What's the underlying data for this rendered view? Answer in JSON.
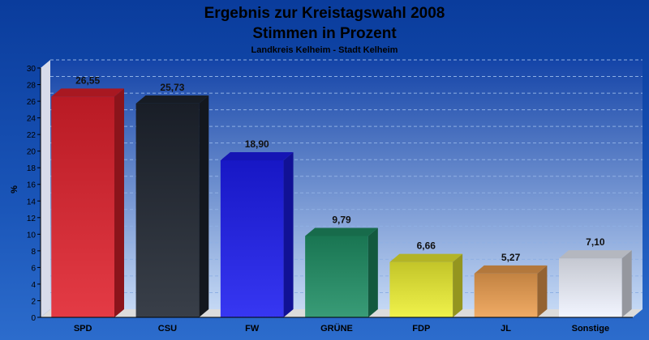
{
  "chart_data": {
    "type": "bar",
    "title": "Ergebnis zur Kreistagswahl 2008",
    "subtitle": "Stimmen in Prozent",
    "note": "Landkreis Kelheim - Stadt Kelheim",
    "ylabel": "%",
    "xlabel": "",
    "ylim": [
      0,
      30
    ],
    "yticks": [
      "0",
      "2",
      "4",
      "6",
      "8",
      "10",
      "12",
      "14",
      "16",
      "18",
      "20",
      "22",
      "24",
      "26",
      "28",
      "30"
    ],
    "grid": true,
    "categories": [
      "SPD",
      "CSU",
      "FW",
      "GRÜNE",
      "FDP",
      "JL",
      "Sonstige"
    ],
    "values": [
      26.55,
      25.73,
      18.9,
      9.79,
      6.66,
      5.27,
      7.1
    ],
    "value_labels": [
      "26,55",
      "25,73",
      "18,90",
      "9,79",
      "6,66",
      "5,27",
      "7,10"
    ],
    "colors": [
      "#e0202c",
      "#1e2530",
      "#1c1cf0",
      "#1e8f64",
      "#eef032",
      "#eea050",
      "#f0f4ff"
    ]
  }
}
